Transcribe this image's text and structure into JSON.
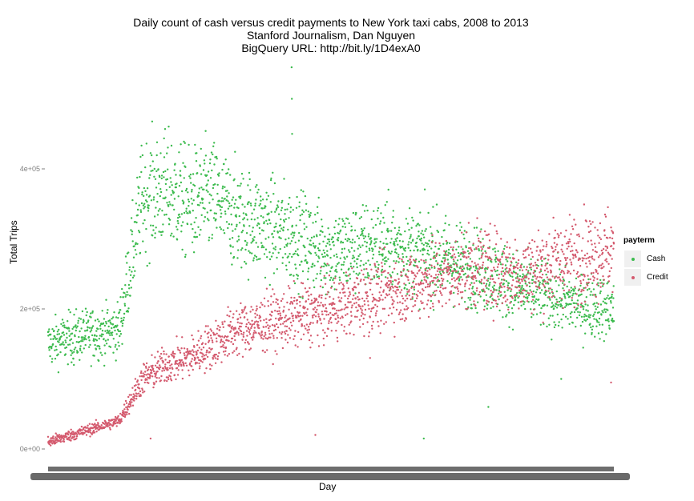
{
  "title": {
    "line1": "Daily count of cash versus credit payments to New York taxi cabs, 2008 to 2013",
    "line2": "Stanford Journalism, Dan Nguyen",
    "line3": "BigQuery URL: http://bit.ly/1D4exA0"
  },
  "chart_data": {
    "type": "scatter",
    "title": "Daily count of cash versus credit payments to New York taxi cabs, 2008 to 2013",
    "xlabel": "Day",
    "ylabel": "Total Trips",
    "x_range": [
      "2008-01-01",
      "2013-12-31"
    ],
    "ylim": [
      0,
      560000
    ],
    "y_ticks": [
      {
        "value": 0,
        "label": "0e+00"
      },
      {
        "value": 200000,
        "label": "2e+05"
      },
      {
        "value": 400000,
        "label": "4e+05"
      }
    ],
    "grid": false,
    "legend": {
      "title": "payterm",
      "placement": "right"
    },
    "series": [
      {
        "name": "Cash",
        "color": "#3cbb4e",
        "trend": [
          [
            "2008-01-01",
            150000
          ],
          [
            "2008-04-01",
            160000
          ],
          [
            "2008-07-01",
            165000
          ],
          [
            "2008-10-01",
            170000
          ],
          [
            "2009-01-01",
            360000
          ],
          [
            "2009-04-01",
            370000
          ],
          [
            "2009-07-01",
            350000
          ],
          [
            "2009-10-01",
            360000
          ],
          [
            "2010-01-01",
            330000
          ],
          [
            "2010-07-01",
            310000
          ],
          [
            "2011-01-01",
            280000
          ],
          [
            "2011-07-01",
            290000
          ],
          [
            "2012-01-01",
            280000
          ],
          [
            "2012-07-01",
            260000
          ],
          [
            "2013-01-01",
            230000
          ],
          [
            "2013-07-01",
            210000
          ],
          [
            "2013-12-31",
            200000
          ]
        ],
        "outliers": [
          [
            "2008-04-10",
            120000
          ],
          [
            "2010-08-01",
            545000
          ],
          [
            "2010-08-02",
            500000
          ],
          [
            "2010-08-03",
            450000
          ],
          [
            "2011-12-26",
            15000
          ],
          [
            "2012-09-01",
            60000
          ],
          [
            "2013-06-10",
            100000
          ]
        ]
      },
      {
        "name": "Credit",
        "color": "#d45a6e",
        "trend": [
          [
            "2008-01-01",
            10000
          ],
          [
            "2008-04-01",
            20000
          ],
          [
            "2008-07-01",
            30000
          ],
          [
            "2008-10-01",
            40000
          ],
          [
            "2009-01-01",
            100000
          ],
          [
            "2009-04-01",
            120000
          ],
          [
            "2009-07-01",
            130000
          ],
          [
            "2009-10-01",
            150000
          ],
          [
            "2010-01-01",
            170000
          ],
          [
            "2010-07-01",
            185000
          ],
          [
            "2011-01-01",
            200000
          ],
          [
            "2011-07-01",
            220000
          ],
          [
            "2012-01-01",
            240000
          ],
          [
            "2012-07-01",
            260000
          ],
          [
            "2013-01-01",
            250000
          ],
          [
            "2013-07-01",
            270000
          ],
          [
            "2013-12-31",
            285000
          ]
        ],
        "outliers": [
          [
            "2009-02-01",
            15000
          ],
          [
            "2010-11-01",
            20000
          ],
          [
            "2011-06-01",
            130000
          ],
          [
            "2013-12-20",
            95000
          ]
        ]
      }
    ]
  }
}
